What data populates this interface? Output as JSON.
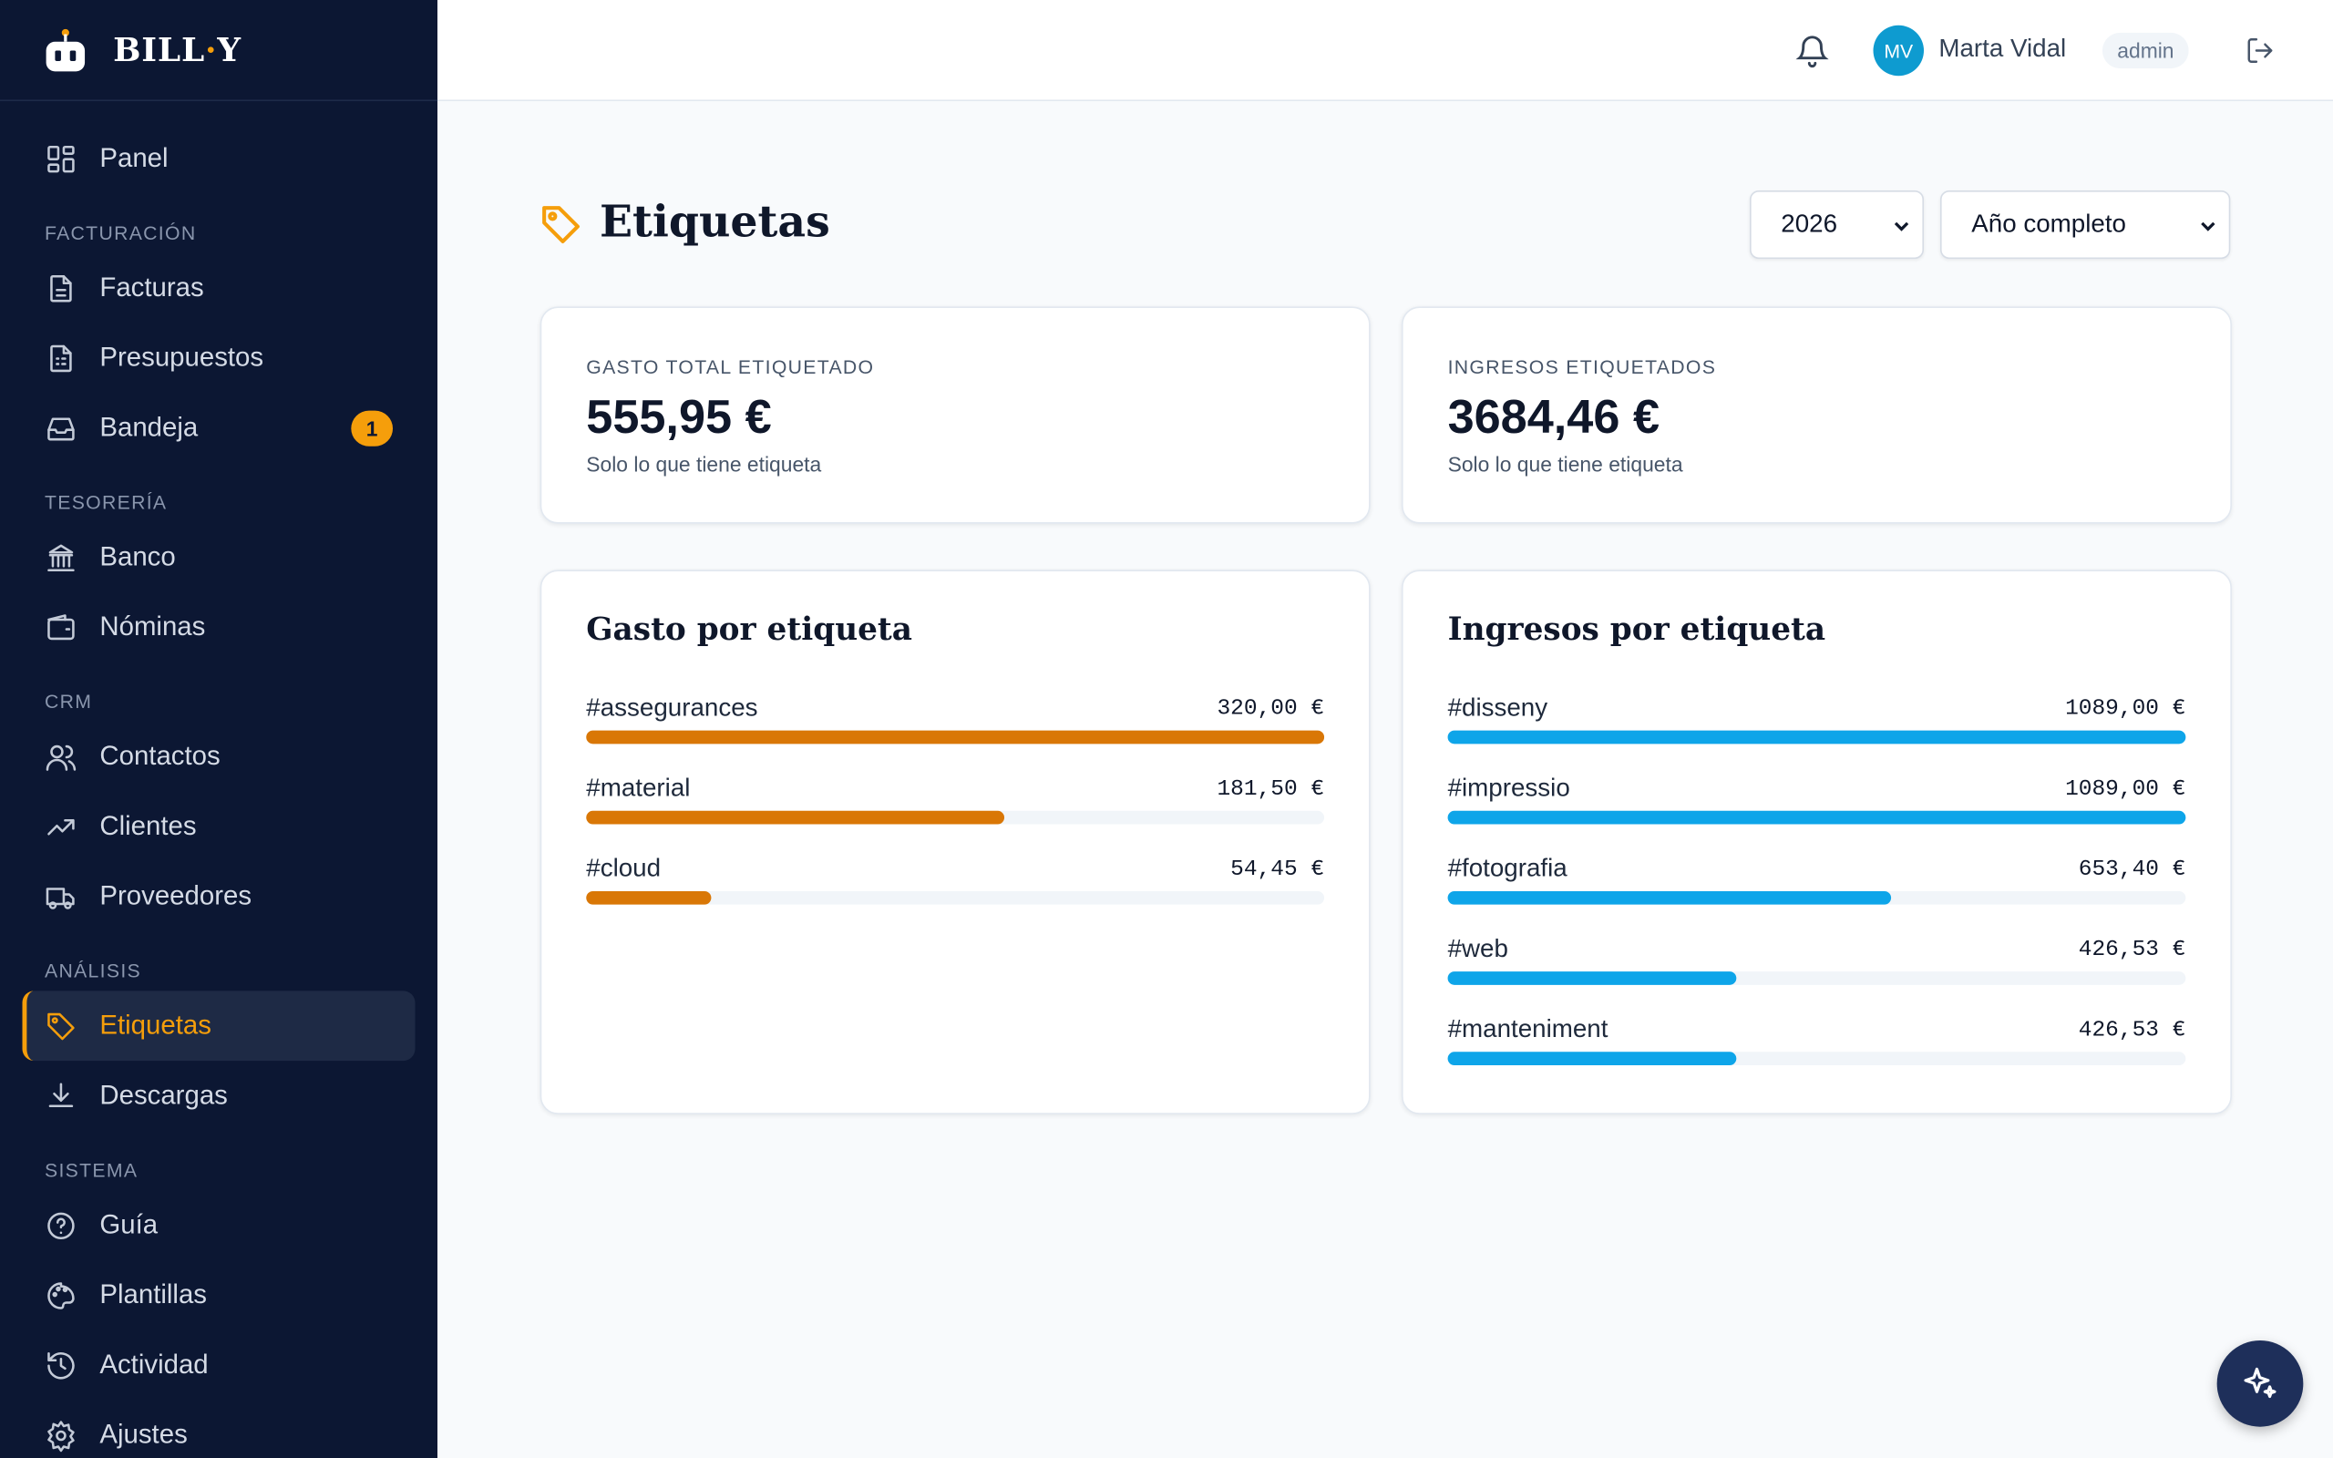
{
  "brand": {
    "left": "BILL",
    "dot": "·",
    "right": "Y"
  },
  "nav": [
    {
      "label": "Panel"
    },
    {
      "section": "FACTURACIÓN"
    },
    {
      "label": "Facturas"
    },
    {
      "label": "Presupuestos"
    },
    {
      "label": "Bandeja",
      "badge": "1"
    },
    {
      "section": "TESORERÍA"
    },
    {
      "label": "Banco"
    },
    {
      "label": "Nóminas"
    },
    {
      "section": "CRM"
    },
    {
      "label": "Contactos"
    },
    {
      "label": "Clientes"
    },
    {
      "label": "Proveedores"
    },
    {
      "section": "ANÁLISIS"
    },
    {
      "label": "Etiquetas",
      "active": true
    },
    {
      "label": "Descargas"
    },
    {
      "section": "SISTEMA"
    },
    {
      "label": "Guía"
    },
    {
      "label": "Plantillas"
    },
    {
      "label": "Actividad"
    },
    {
      "label": "Ajustes"
    }
  ],
  "header": {
    "avatar": "MV",
    "user": "Marta Vidal",
    "role": "admin"
  },
  "page": {
    "title": "Etiquetas",
    "year": "2026",
    "period": "Año completo"
  },
  "summary": [
    {
      "label": "GASTO TOTAL ETIQUETADO",
      "amount": "555,95 €",
      "note": "Solo lo que tiene etiqueta"
    },
    {
      "label": "INGRESOS ETIQUETADOS",
      "amount": "3684,46 €",
      "note": "Solo lo que tiene etiqueta"
    }
  ],
  "breakdowns": [
    {
      "title": "Gasto por etiqueta",
      "color": "#d97706",
      "items": [
        {
          "tag": "#assegurances",
          "value": 320,
          "label": "320,00 €"
        },
        {
          "tag": "#material",
          "value": 181.5,
          "label": "181,50 €"
        },
        {
          "tag": "#cloud",
          "value": 54.45,
          "label": "54,45 €"
        }
      ]
    },
    {
      "title": "Ingresos por etiqueta",
      "color": "#0ea5e9",
      "items": [
        {
          "tag": "#disseny",
          "value": 1089,
          "label": "1089,00 €"
        },
        {
          "tag": "#impressio",
          "value": 1089,
          "label": "1089,00 €"
        },
        {
          "tag": "#fotografia",
          "value": 653.4,
          "label": "653,40 €"
        },
        {
          "tag": "#web",
          "value": 426.53,
          "label": "426,53 €"
        },
        {
          "tag": "#manteniment",
          "value": 426.53,
          "label": "426,53 €"
        }
      ]
    }
  ]
}
